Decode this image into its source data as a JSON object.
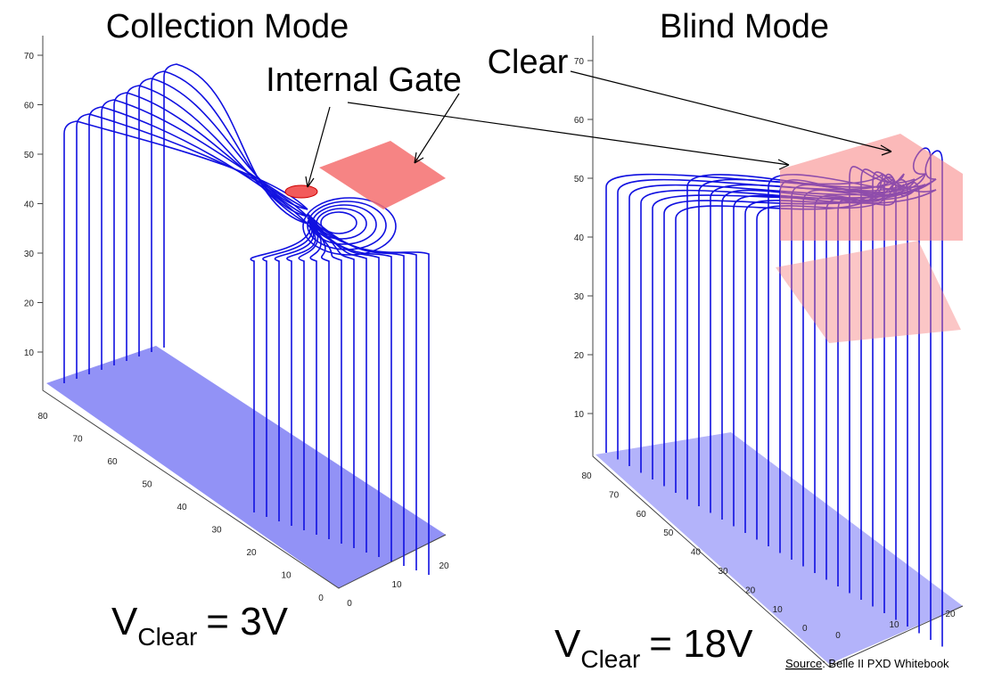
{
  "panels": [
    {
      "title": "Collection Mode",
      "z_ticks": [
        "10",
        "20",
        "30",
        "40",
        "50",
        "60",
        "70"
      ],
      "y_ticks": [
        "80",
        "70",
        "60",
        "50",
        "40",
        "30",
        "20",
        "10",
        "0"
      ],
      "x_ticks": [
        "0",
        "10",
        "20"
      ],
      "voltage": {
        "symbol": "V",
        "subscript": "Clear",
        "rest": "= 3V"
      }
    },
    {
      "title": "Blind Mode",
      "z_ticks": [
        "10",
        "20",
        "30",
        "40",
        "50",
        "60",
        "70"
      ],
      "y_ticks": [
        "80",
        "70",
        "60",
        "50",
        "40",
        "30",
        "20",
        "10",
        "0"
      ],
      "x_ticks": [
        "0",
        "10",
        "20"
      ],
      "voltage": {
        "symbol": "V",
        "subscript": "Clear",
        "rest": "= 18V"
      }
    }
  ],
  "annotations": {
    "internal_gate": "Internal Gate",
    "clear": "Clear"
  },
  "source": {
    "label": "Source",
    "text": ": Belle  II PXD Whitebook"
  }
}
